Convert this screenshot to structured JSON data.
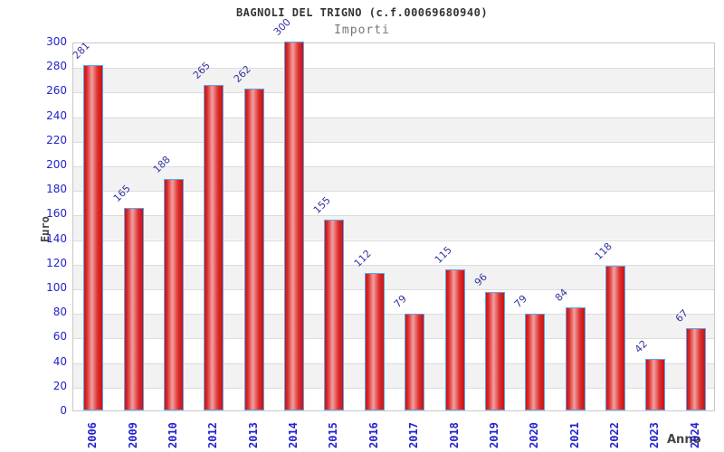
{
  "chart_data": {
    "type": "bar",
    "title": "BAGNOLI DEL TRIGNO (c.f.00069680940)",
    "subtitle": "Importi",
    "xlabel": "Anno",
    "ylabel": "Euro",
    "categories": [
      "2006",
      "2009",
      "2010",
      "2012",
      "2013",
      "2014",
      "2015",
      "2016",
      "2017",
      "2018",
      "2019",
      "2020",
      "2021",
      "2022",
      "2023",
      "2024"
    ],
    "values": [
      281,
      165,
      188,
      265,
      262,
      300,
      155,
      112,
      79,
      115,
      96,
      79,
      84,
      118,
      42,
      67
    ],
    "ylim": [
      0,
      300
    ],
    "ytick_step": 20,
    "yticks": [
      0,
      20,
      40,
      60,
      80,
      100,
      120,
      140,
      160,
      180,
      200,
      220,
      240,
      260,
      280,
      300
    ],
    "grid": "horizontal",
    "legend": "none",
    "colors": {
      "bar_edge": "#58a7ec",
      "bar_dark": "#c81414",
      "bar_light": "#f2a0a0",
      "axis_tick_label": "#2222cc",
      "value_label": "#3333a0",
      "title": "#333333",
      "subtitle": "#777777",
      "axis_title": "#444444",
      "band": "#f2f2f2",
      "gridline": "#dcdcdc",
      "plot_border": "#c9c9c9",
      "background": "#ffffff"
    }
  }
}
